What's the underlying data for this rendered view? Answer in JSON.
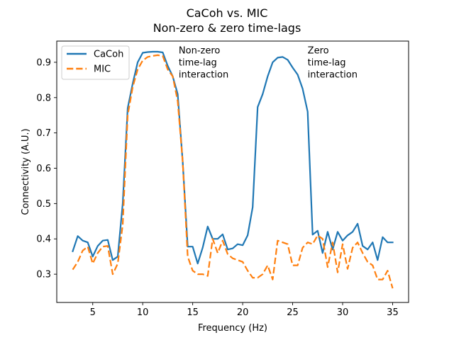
{
  "chart_data": {
    "type": "line",
    "title": "CaCoh vs. MIC",
    "subtitle": "Non-zero & zero time-lags",
    "xlabel": "Frequency (Hz)",
    "ylabel": "Connectivity (A.U.)",
    "xlim": [
      1.4,
      36.6
    ],
    "ylim": [
      0.22,
      0.96
    ],
    "xticks": [
      5,
      10,
      15,
      20,
      25,
      30,
      35
    ],
    "yticks": [
      0.3,
      0.4,
      0.5,
      0.6,
      0.7,
      0.8,
      0.9
    ],
    "xtick_labels": [
      "5",
      "10",
      "15",
      "20",
      "25",
      "30",
      "35"
    ],
    "ytick_labels": [
      "0.3",
      "0.4",
      "0.5",
      "0.6",
      "0.7",
      "0.8",
      "0.9"
    ],
    "grid": false,
    "legend_position": "top-left",
    "annotations": [
      {
        "lines": [
          "Non-zero",
          "time-lag",
          "interaction"
        ],
        "x": 13.6,
        "y": 0.925
      },
      {
        "lines": [
          "Zero",
          "time-lag",
          "interaction"
        ],
        "x": 26.5,
        "y": 0.925
      }
    ],
    "series": [
      {
        "name": "CaCoh",
        "color": "#1f77b4",
        "style": "solid",
        "x": [
          3.0,
          3.5,
          4.0,
          4.5,
          5.0,
          5.5,
          6.0,
          6.5,
          7.0,
          7.5,
          8.0,
          8.5,
          9.0,
          9.5,
          10.0,
          10.5,
          11.0,
          11.5,
          12.0,
          12.5,
          13.0,
          13.5,
          14.0,
          14.5,
          15.0,
          15.5,
          16.0,
          16.5,
          17.0,
          17.5,
          18.0,
          18.5,
          19.0,
          19.5,
          20.0,
          20.5,
          21.0,
          21.5,
          22.0,
          22.5,
          23.0,
          23.5,
          24.0,
          24.5,
          25.0,
          25.5,
          26.0,
          26.5,
          27.0,
          27.5,
          28.0,
          28.5,
          29.0,
          29.5,
          30.0,
          30.5,
          31.0,
          31.5,
          32.0,
          32.5,
          33.0,
          33.5,
          34.0,
          34.5,
          35.0
        ],
        "values": [
          0.365,
          0.408,
          0.395,
          0.39,
          0.35,
          0.38,
          0.395,
          0.397,
          0.34,
          0.35,
          0.5,
          0.77,
          0.84,
          0.9,
          0.927,
          0.929,
          0.93,
          0.93,
          0.928,
          0.89,
          0.86,
          0.81,
          0.62,
          0.378,
          0.378,
          0.33,
          0.375,
          0.435,
          0.4,
          0.4,
          0.413,
          0.37,
          0.373,
          0.385,
          0.382,
          0.41,
          0.49,
          0.773,
          0.81,
          0.86,
          0.9,
          0.913,
          0.915,
          0.907,
          0.885,
          0.865,
          0.825,
          0.76,
          0.412,
          0.423,
          0.36,
          0.42,
          0.37,
          0.42,
          0.395,
          0.41,
          0.42,
          0.443,
          0.38,
          0.37,
          0.39,
          0.34,
          0.405,
          0.39,
          0.39
        ]
      },
      {
        "name": "MIC",
        "color": "#ff7f0e",
        "style": "dashed",
        "x": [
          3.0,
          3.5,
          4.0,
          4.5,
          5.0,
          5.5,
          6.0,
          6.5,
          7.0,
          7.5,
          8.0,
          8.5,
          9.0,
          9.5,
          10.0,
          10.5,
          11.0,
          11.5,
          12.0,
          12.5,
          13.0,
          13.5,
          14.0,
          14.5,
          15.0,
          15.5,
          16.0,
          16.5,
          17.0,
          17.5,
          18.0,
          18.5,
          19.0,
          19.5,
          20.0,
          20.5,
          21.0,
          21.5,
          22.0,
          22.5,
          23.0,
          23.5,
          24.0,
          24.5,
          25.0,
          25.5,
          26.0,
          26.5,
          27.0,
          27.5,
          28.0,
          28.5,
          29.0,
          29.5,
          30.0,
          30.5,
          31.0,
          31.5,
          32.0,
          32.5,
          33.0,
          33.5,
          34.0,
          34.5,
          35.0
        ],
        "values": [
          0.313,
          0.335,
          0.367,
          0.378,
          0.33,
          0.36,
          0.378,
          0.38,
          0.3,
          0.33,
          0.44,
          0.75,
          0.83,
          0.88,
          0.905,
          0.915,
          0.918,
          0.92,
          0.918,
          0.88,
          0.86,
          0.79,
          0.62,
          0.35,
          0.31,
          0.3,
          0.3,
          0.295,
          0.4,
          0.36,
          0.395,
          0.357,
          0.345,
          0.34,
          0.335,
          0.31,
          0.29,
          0.29,
          0.3,
          0.325,
          0.285,
          0.395,
          0.39,
          0.385,
          0.325,
          0.325,
          0.375,
          0.39,
          0.385,
          0.41,
          0.4,
          0.32,
          0.39,
          0.305,
          0.385,
          0.315,
          0.375,
          0.39,
          0.36,
          0.335,
          0.325,
          0.285,
          0.285,
          0.31,
          0.26
        ]
      }
    ]
  }
}
